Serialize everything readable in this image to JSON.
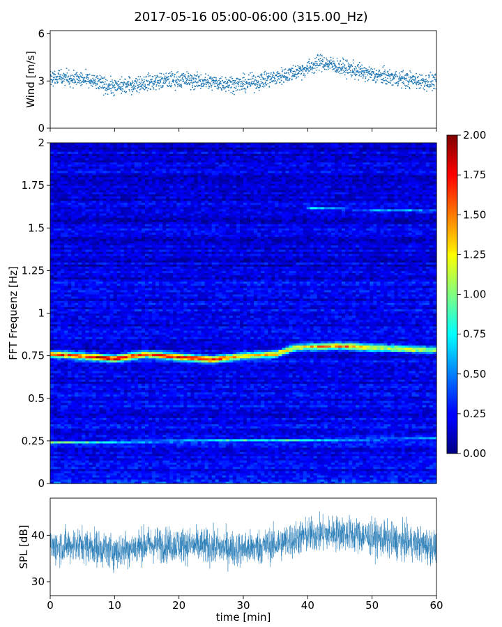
{
  "title": "2017-05-16 05:00-06:00 (315.00_Hz)",
  "chart_data": [
    {
      "panel": "wind",
      "type": "scatter",
      "ylabel": "Wind [m/s]",
      "xlabel": "",
      "xlim": [
        0,
        60
      ],
      "ylim": [
        0,
        6.2
      ],
      "yticks": [
        0,
        3,
        6
      ],
      "grid": false,
      "color": "#1f77b4",
      "trend": {
        "x": [
          0,
          5,
          10,
          15,
          20,
          25,
          30,
          35,
          40,
          42,
          45,
          50,
          55,
          60
        ],
        "y": [
          3.3,
          3.1,
          2.6,
          2.9,
          3.1,
          2.9,
          2.8,
          3.2,
          3.8,
          4.2,
          3.9,
          3.4,
          3.1,
          2.9
        ]
      },
      "spread": 0.55,
      "n_points": 1800
    },
    {
      "panel": "spectrogram",
      "type": "heatmap",
      "ylabel": "FFT Frequenz [Hz]",
      "xlabel": "",
      "xlim": [
        0,
        60
      ],
      "ylim": [
        0,
        2
      ],
      "yticks": [
        0,
        0.25,
        0.5,
        0.75,
        1,
        1.25,
        1.5,
        1.75,
        2
      ],
      "ytick_labels": [
        "0",
        "0.25",
        "0.5",
        "0.75",
        "1",
        "1.25",
        "1.5",
        "1.75",
        "2"
      ],
      "colormap": "jet",
      "clim": [
        0,
        2
      ],
      "colorbar_ticks": [
        "0.00",
        "0.25",
        "0.50",
        "0.75",
        "1.00",
        "1.25",
        "1.50",
        "1.75",
        "2.00"
      ],
      "bands": [
        {
          "name": "main",
          "x": [
            0,
            5,
            10,
            15,
            20,
            25,
            30,
            35,
            38,
            45,
            50,
            60
          ],
          "freq": [
            0.76,
            0.75,
            0.735,
            0.76,
            0.745,
            0.73,
            0.75,
            0.76,
            0.8,
            0.81,
            0.8,
            0.785
          ],
          "intensity": [
            1.3,
            1.5,
            1.75,
            1.5,
            1.55,
            1.5,
            1.2,
            1.3,
            1.05,
            1.35,
            1.1,
            0.9
          ]
        },
        {
          "name": "low",
          "x": [
            0,
            60
          ],
          "freq": [
            0.245,
            0.265
          ],
          "intensity": [
            0.75,
            0.6
          ]
        },
        {
          "name": "upper",
          "x": [
            40,
            60
          ],
          "freq": [
            1.62,
            1.6
          ],
          "intensity": [
            0.45,
            0.4
          ]
        }
      ],
      "background_level": 0.22
    },
    {
      "panel": "spl",
      "type": "line",
      "ylabel": "SPL [dB]",
      "xlabel": "time [min]",
      "xlim": [
        0,
        60
      ],
      "ylim": [
        27,
        48
      ],
      "yticks": [
        30,
        40
      ],
      "xticks": [
        0,
        10,
        20,
        30,
        40,
        50,
        60
      ],
      "grid": false,
      "color": "#1f77b4",
      "trend": {
        "x": [
          0,
          5,
          10,
          15,
          20,
          25,
          30,
          35,
          40,
          45,
          50,
          55,
          60
        ],
        "y": [
          37.5,
          38,
          36.5,
          38,
          38,
          37.5,
          37,
          38,
          40,
          40.5,
          39.5,
          38.5,
          37.5
        ]
      },
      "spread": 3.8,
      "n_points": 2600
    }
  ]
}
